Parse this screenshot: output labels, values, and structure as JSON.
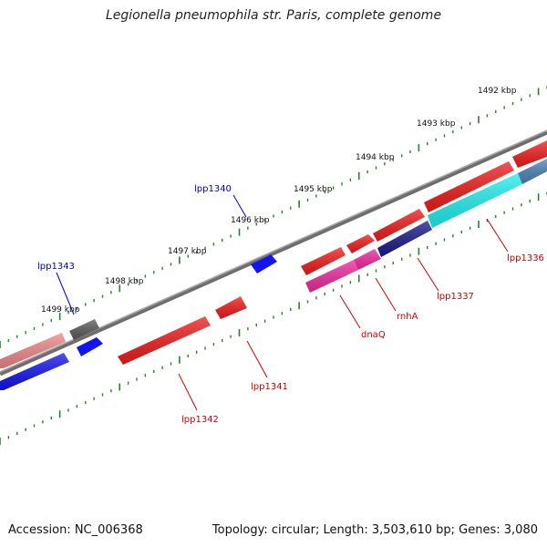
{
  "header": {
    "title": "Legionella pneumophila str. Paris, complete genome"
  },
  "footer": {
    "accession": "Accession: NC_006368",
    "summary": "Topology: circular; Length: 3,503,610 bp; Genes: 3,080"
  },
  "map": {
    "scale_labels": [
      "1492 kbp",
      "1493 kbp",
      "1494 kbp",
      "1495 kbp",
      "1496 kbp",
      "1497 kbp",
      "1498 kbp",
      "1499 kbp"
    ],
    "gene_labels": [
      "lpp1340",
      "lpp1343",
      "lpp1336",
      "lpp1337",
      "rnhA",
      "dnaQ",
      "lpp1341",
      "lpp1342"
    ]
  },
  "colors": {
    "backbone": "#808080",
    "tick": "#2e7d32",
    "gene_red": "#ee1c1c",
    "gene_pink": "#ee8888",
    "gene_blue": "#1414ee",
    "gene_gray": "#666666",
    "gene_magenta": "#ee2a9e",
    "gene_cyan": "#22eeee",
    "gene_steel": "#4a82b4",
    "gene_navy": "#1a1a8a",
    "label_red": "#cc0000",
    "label_blue": "#0000cc"
  }
}
